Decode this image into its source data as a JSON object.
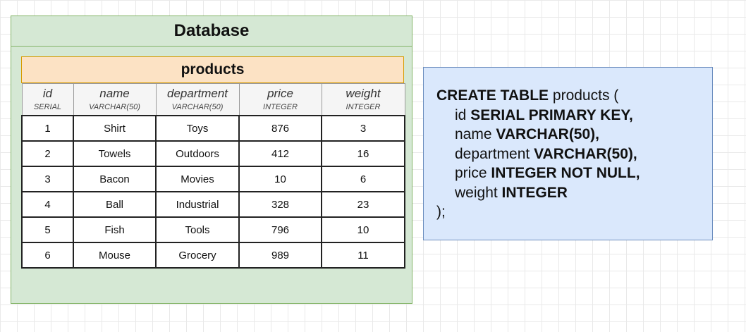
{
  "database": {
    "title": "Database"
  },
  "table": {
    "name": "products",
    "columns": [
      {
        "name": "id",
        "type": "SERIAL"
      },
      {
        "name": "name",
        "type": "VARCHAR(50)"
      },
      {
        "name": "department",
        "type": "VARCHAR(50)"
      },
      {
        "name": "price",
        "type": "INTEGER"
      },
      {
        "name": "weight",
        "type": "INTEGER"
      }
    ],
    "rows": [
      [
        "1",
        "Shirt",
        "Toys",
        "876",
        "3"
      ],
      [
        "2",
        "Towels",
        "Outdoors",
        "412",
        "16"
      ],
      [
        "3",
        "Bacon",
        "Movies",
        "10",
        "6"
      ],
      [
        "4",
        "Ball",
        "Industrial",
        "328",
        "23"
      ],
      [
        "5",
        "Fish",
        "Tools",
        "796",
        "10"
      ],
      [
        "6",
        "Mouse",
        "Grocery",
        "989",
        "11"
      ]
    ]
  },
  "sql": {
    "kw_create": "CREATE TABLE",
    "table_name": " products (",
    "lines": [
      {
        "col": "id",
        "def": "SERIAL PRIMARY KEY,"
      },
      {
        "col": "name",
        "def": "VARCHAR(50),"
      },
      {
        "col": "department",
        "def": "VARCHAR(50),"
      },
      {
        "col": "price",
        "def": "INTEGER NOT NULL,"
      },
      {
        "col": "weight",
        "def": "INTEGER"
      }
    ],
    "close": ");"
  },
  "colors": {
    "database_fill": "#d5e8d4",
    "database_border": "#82b366",
    "table_title_fill": "#fce2c4",
    "sql_fill": "#dae8fc",
    "sql_border": "#6c8ebf"
  }
}
